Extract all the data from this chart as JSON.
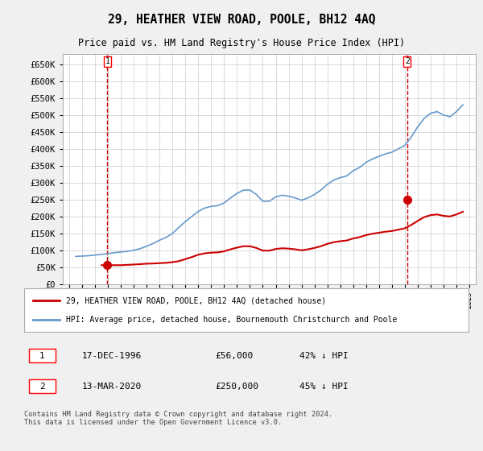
{
  "title": "29, HEATHER VIEW ROAD, POOLE, BH12 4AQ",
  "subtitle": "Price paid vs. HM Land Registry's House Price Index (HPI)",
  "legend_line1": "29, HEATHER VIEW ROAD, POOLE, BH12 4AQ (detached house)",
  "legend_line2": "HPI: Average price, detached house, Bournemouth Christchurch and Poole",
  "footnote": "Contains HM Land Registry data © Crown copyright and database right 2024.\nThis data is licensed under the Open Government Licence v3.0.",
  "sale1_label": "1",
  "sale1_date": "17-DEC-1996",
  "sale1_price": "£56,000",
  "sale1_hpi": "42% ↓ HPI",
  "sale2_label": "2",
  "sale2_date": "13-MAR-2020",
  "sale2_price": "£250,000",
  "sale2_hpi": "45% ↓ HPI",
  "sale_color": "#cc0000",
  "hpi_color": "#6699cc",
  "ylim": [
    0,
    680000
  ],
  "yticks": [
    0,
    50000,
    100000,
    150000,
    200000,
    250000,
    300000,
    350000,
    400000,
    450000,
    500000,
    550000,
    600000,
    650000
  ],
  "ytick_labels": [
    "£0",
    "£50K",
    "£100K",
    "£150K",
    "£200K",
    "£250K",
    "£300K",
    "£350K",
    "£400K",
    "£450K",
    "£500K",
    "£550K",
    "£600K",
    "£650K"
  ],
  "sale1_x": 1996.96,
  "sale1_y": 56000,
  "sale2_x": 2020.19,
  "sale2_y": 250000,
  "hpi_years": [
    1994.5,
    1995,
    1995.5,
    1996,
    1996.5,
    1997,
    1997.5,
    1998,
    1998.5,
    1999,
    1999.5,
    2000,
    2000.5,
    2001,
    2001.5,
    2002,
    2002.5,
    2003,
    2003.5,
    2004,
    2004.5,
    2005,
    2005.5,
    2006,
    2006.5,
    2007,
    2007.5,
    2008,
    2008.5,
    2009,
    2009.5,
    2010,
    2010.5,
    2011,
    2011.5,
    2012,
    2012.5,
    2013,
    2013.5,
    2014,
    2014.5,
    2015,
    2015.5,
    2016,
    2016.5,
    2017,
    2017.5,
    2018,
    2018.5,
    2019,
    2019.5,
    2020,
    2020.5,
    2021,
    2021.5,
    2022,
    2022.5,
    2023,
    2023.5,
    2024,
    2024.5
  ],
  "hpi_values": [
    82000,
    83000,
    84000,
    86000,
    88000,
    90000,
    93000,
    95000,
    97000,
    100000,
    105000,
    112000,
    120000,
    130000,
    138000,
    150000,
    168000,
    185000,
    200000,
    215000,
    225000,
    230000,
    232000,
    240000,
    255000,
    268000,
    278000,
    278000,
    265000,
    245000,
    245000,
    258000,
    263000,
    260000,
    255000,
    248000,
    255000,
    265000,
    278000,
    295000,
    308000,
    315000,
    320000,
    335000,
    345000,
    360000,
    370000,
    378000,
    385000,
    390000,
    400000,
    410000,
    435000,
    465000,
    490000,
    505000,
    510000,
    500000,
    495000,
    510000,
    530000
  ],
  "sale_years": [
    1994.5,
    1995,
    1995.5,
    1996,
    1996.5,
    1997,
    1997.5,
    1998,
    1998.5,
    1999,
    1999.5,
    2000,
    2000.5,
    2001,
    2001.5,
    2002,
    2002.5,
    2003,
    2003.5,
    2004,
    2004.5,
    2005,
    2005.5,
    2006,
    2006.5,
    2007,
    2007.5,
    2008,
    2008.5,
    2009,
    2009.5,
    2010,
    2010.5,
    2011,
    2011.5,
    2012,
    2012.5,
    2013,
    2013.5,
    2014,
    2014.5,
    2015,
    2015.5,
    2016,
    2016.5,
    2017,
    2017.5,
    2018,
    2018.5,
    2019,
    2019.5,
    2020,
    2020.5,
    2021,
    2021.5,
    2022,
    2022.5,
    2023,
    2023.5,
    2024,
    2024.5
  ],
  "sale_values": [
    null,
    null,
    null,
    null,
    56000,
    56000,
    56000,
    56000,
    57000,
    58000,
    59000,
    60500,
    61000,
    62000,
    63000,
    65000,
    68000,
    74000,
    80000,
    87000,
    91000,
    93000,
    94000,
    97000,
    103000,
    108000,
    112000,
    112000,
    107000,
    99000,
    99000,
    104000,
    106000,
    105000,
    103000,
    100000,
    103000,
    107000,
    112000,
    119000,
    124000,
    127000,
    129000,
    135000,
    139000,
    145000,
    149000,
    152000,
    155000,
    157000,
    161000,
    165000,
    175000,
    187000,
    198000,
    204000,
    206000,
    202000,
    200000,
    206000,
    214000
  ],
  "xtick_years": [
    1994,
    1995,
    1996,
    1997,
    1998,
    1999,
    2000,
    2001,
    2002,
    2003,
    2004,
    2005,
    2006,
    2007,
    2008,
    2009,
    2010,
    2011,
    2012,
    2013,
    2014,
    2015,
    2016,
    2017,
    2018,
    2019,
    2020,
    2021,
    2022,
    2023,
    2024,
    2025
  ],
  "background_color": "#f0f0f0",
  "plot_bg_color": "#ffffff"
}
